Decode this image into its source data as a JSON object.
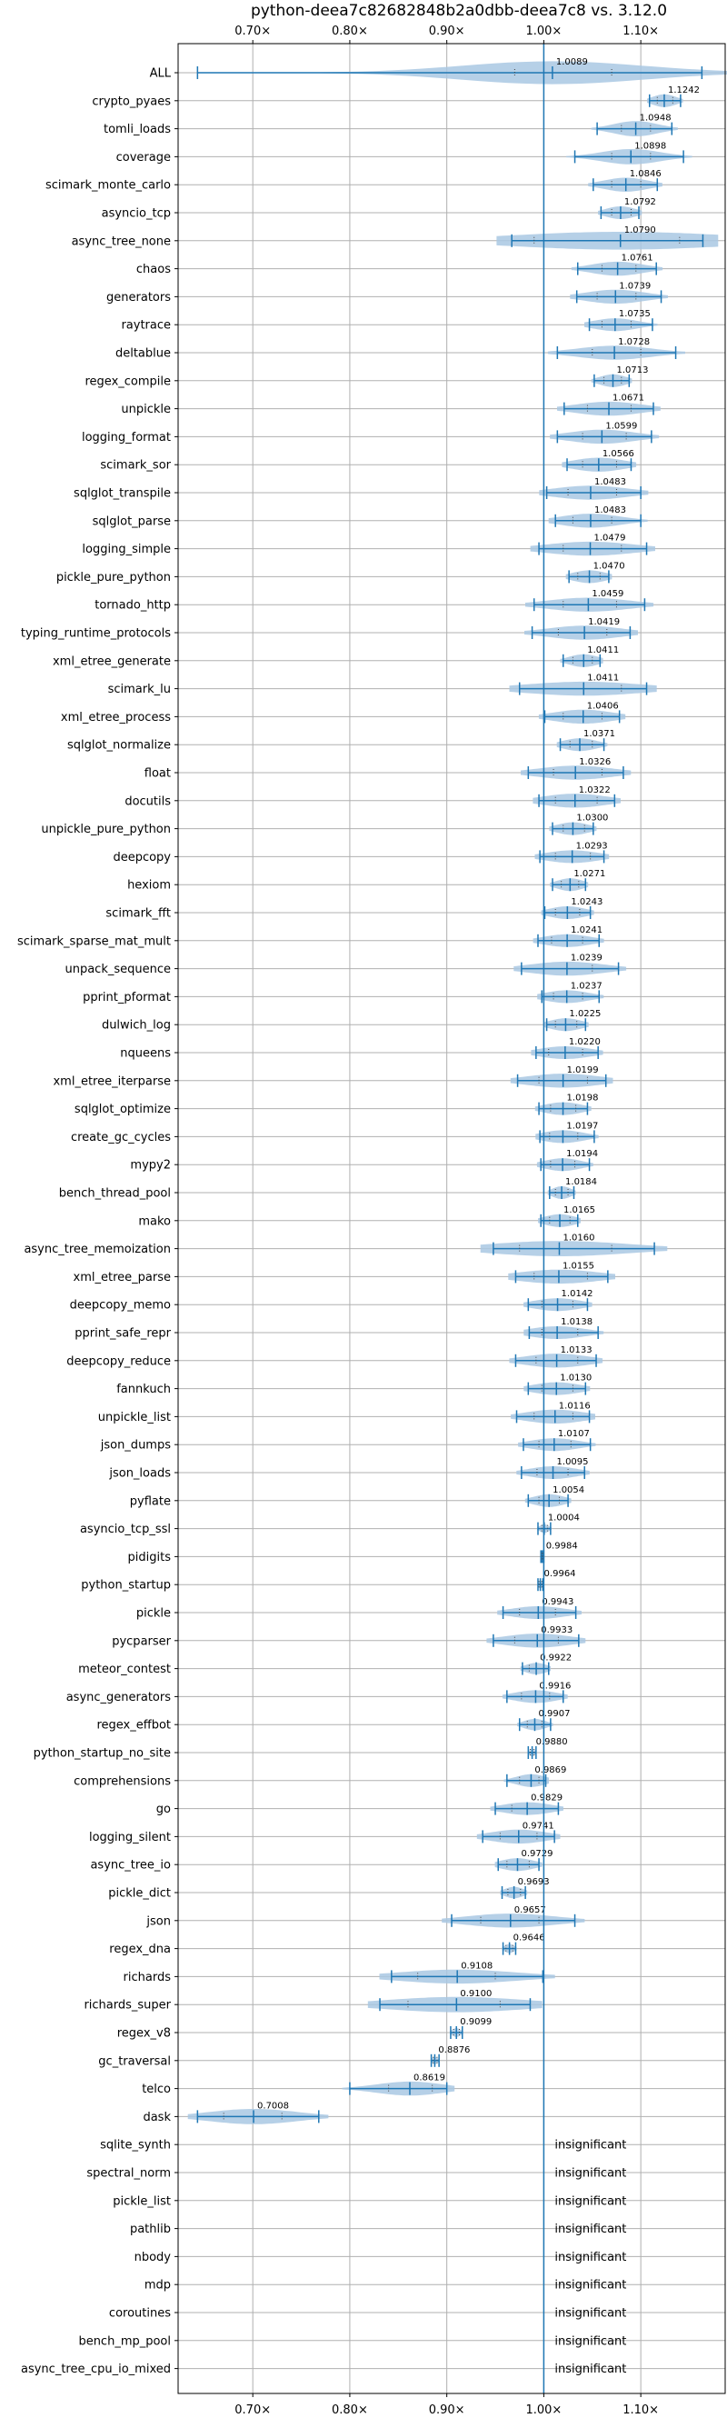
{
  "chart_data": {
    "type": "violin",
    "title": "python-deea7c82682848b2a0dbb-deea7c8 vs. 3.12.0",
    "orientation": "horizontal",
    "xlim": [
      0.623,
      1.187
    ],
    "xticks": [
      0.7,
      0.8,
      0.9,
      1.0,
      1.1
    ],
    "xtick_labels": [
      "0.70×",
      "0.80×",
      "0.90×",
      "1.00×",
      "1.10×"
    ],
    "reference_line": 1.0,
    "grid": true,
    "colors": {
      "violin": "#a9c8e3",
      "line": "#1f77b4",
      "grid": "#b0b0b0"
    },
    "insignificant_label": "insignificant",
    "benchmarks": [
      {
        "name": "ALL",
        "value": 1.0089,
        "min": 0.643,
        "max": 1.163,
        "p25": 0.97,
        "p75": 1.07,
        "width": 0.9,
        "insignificant": false
      },
      {
        "name": "crypto_pyaes",
        "value": 1.1242,
        "min": 1.109,
        "max": 1.141,
        "p25": 1.117,
        "p75": 1.133,
        "width": 0.5,
        "insignificant": false
      },
      {
        "name": "tomli_loads",
        "value": 1.0948,
        "min": 1.055,
        "max": 1.132,
        "p25": 1.08,
        "p75": 1.11,
        "width": 0.6,
        "insignificant": false
      },
      {
        "name": "coverage",
        "value": 1.0898,
        "min": 1.032,
        "max": 1.144,
        "p25": 1.07,
        "p75": 1.11,
        "width": 0.6,
        "insignificant": false
      },
      {
        "name": "scimark_monte_carlo",
        "value": 1.0846,
        "min": 1.051,
        "max": 1.117,
        "p25": 1.07,
        "p75": 1.1,
        "width": 0.55,
        "insignificant": false
      },
      {
        "name": "asyncio_tcp",
        "value": 1.0792,
        "min": 1.059,
        "max": 1.098,
        "p25": 1.07,
        "p75": 1.09,
        "width": 0.5,
        "insignificant": false
      },
      {
        "name": "async_tree_none",
        "value": 1.079,
        "min": 0.967,
        "max": 1.164,
        "p25": 0.99,
        "p75": 1.14,
        "width": 0.7,
        "insignificant": false
      },
      {
        "name": "chaos",
        "value": 1.0761,
        "min": 1.035,
        "max": 1.116,
        "p25": 1.06,
        "p75": 1.095,
        "width": 0.55,
        "insignificant": false
      },
      {
        "name": "generators",
        "value": 1.0739,
        "min": 1.034,
        "max": 1.121,
        "p25": 1.055,
        "p75": 1.095,
        "width": 0.55,
        "insignificant": false
      },
      {
        "name": "raytrace",
        "value": 1.0735,
        "min": 1.047,
        "max": 1.112,
        "p25": 1.06,
        "p75": 1.09,
        "width": 0.5,
        "insignificant": false
      },
      {
        "name": "deltablue",
        "value": 1.0728,
        "min": 1.014,
        "max": 1.136,
        "p25": 1.05,
        "p75": 1.1,
        "width": 0.55,
        "insignificant": false
      },
      {
        "name": "regex_compile",
        "value": 1.0713,
        "min": 1.052,
        "max": 1.088,
        "p25": 1.062,
        "p75": 1.08,
        "width": 0.5,
        "insignificant": false
      },
      {
        "name": "unpickle",
        "value": 1.0671,
        "min": 1.021,
        "max": 1.113,
        "p25": 1.045,
        "p75": 1.09,
        "width": 0.55,
        "insignificant": false
      },
      {
        "name": "logging_format",
        "value": 1.0599,
        "min": 1.014,
        "max": 1.111,
        "p25": 1.04,
        "p75": 1.085,
        "width": 0.55,
        "insignificant": false
      },
      {
        "name": "scimark_sor",
        "value": 1.0566,
        "min": 1.024,
        "max": 1.09,
        "p25": 1.04,
        "p75": 1.075,
        "width": 0.55,
        "insignificant": false
      },
      {
        "name": "sqlglot_transpile",
        "value": 1.0483,
        "min": 1.003,
        "max": 1.1,
        "p25": 1.025,
        "p75": 1.075,
        "width": 0.55,
        "insignificant": false
      },
      {
        "name": "sqlglot_parse",
        "value": 1.0483,
        "min": 1.012,
        "max": 1.1,
        "p25": 1.03,
        "p75": 1.07,
        "width": 0.55,
        "insignificant": false
      },
      {
        "name": "logging_simple",
        "value": 1.0479,
        "min": 0.995,
        "max": 1.106,
        "p25": 1.02,
        "p75": 1.08,
        "width": 0.55,
        "insignificant": false
      },
      {
        "name": "pickle_pure_python",
        "value": 1.047,
        "min": 1.026,
        "max": 1.067,
        "p25": 1.035,
        "p75": 1.058,
        "width": 0.5,
        "insignificant": false
      },
      {
        "name": "tornado_http",
        "value": 1.0459,
        "min": 0.99,
        "max": 1.104,
        "p25": 1.02,
        "p75": 1.075,
        "width": 0.55,
        "insignificant": false
      },
      {
        "name": "typing_runtime_protocols",
        "value": 1.0419,
        "min": 0.988,
        "max": 1.089,
        "p25": 1.015,
        "p75": 1.065,
        "width": 0.55,
        "insignificant": false
      },
      {
        "name": "xml_etree_generate",
        "value": 1.0411,
        "min": 1.02,
        "max": 1.058,
        "p25": 1.03,
        "p75": 1.05,
        "width": 0.5,
        "insignificant": false
      },
      {
        "name": "scimark_lu",
        "value": 1.0411,
        "min": 0.975,
        "max": 1.106,
        "p25": 1.0,
        "p75": 1.08,
        "width": 0.55,
        "insignificant": false
      },
      {
        "name": "xml_etree_process",
        "value": 1.0406,
        "min": 1.001,
        "max": 1.078,
        "p25": 1.02,
        "p75": 1.06,
        "width": 0.55,
        "insignificant": false
      },
      {
        "name": "sqlglot_normalize",
        "value": 1.0371,
        "min": 1.017,
        "max": 1.062,
        "p25": 1.027,
        "p75": 1.05,
        "width": 0.5,
        "insignificant": false
      },
      {
        "name": "float",
        "value": 1.0326,
        "min": 0.984,
        "max": 1.082,
        "p25": 1.01,
        "p75": 1.06,
        "width": 0.55,
        "insignificant": false
      },
      {
        "name": "docutils",
        "value": 1.0322,
        "min": 0.995,
        "max": 1.073,
        "p25": 1.012,
        "p75": 1.055,
        "width": 0.55,
        "insignificant": false
      },
      {
        "name": "unpickle_pure_python",
        "value": 1.03,
        "min": 1.009,
        "max": 1.051,
        "p25": 1.02,
        "p75": 1.042,
        "width": 0.5,
        "insignificant": false
      },
      {
        "name": "deepcopy",
        "value": 1.0293,
        "min": 0.996,
        "max": 1.062,
        "p25": 1.012,
        "p75": 1.048,
        "width": 0.5,
        "insignificant": false
      },
      {
        "name": "hexiom",
        "value": 1.0271,
        "min": 1.009,
        "max": 1.043,
        "p25": 1.018,
        "p75": 1.036,
        "width": 0.5,
        "insignificant": false
      },
      {
        "name": "scimark_fft",
        "value": 1.0243,
        "min": 1.001,
        "max": 1.048,
        "p25": 1.012,
        "p75": 1.037,
        "width": 0.5,
        "insignificant": false
      },
      {
        "name": "scimark_sparse_mat_mult",
        "value": 1.0241,
        "min": 0.994,
        "max": 1.057,
        "p25": 1.008,
        "p75": 1.04,
        "width": 0.5,
        "insignificant": false
      },
      {
        "name": "unpack_sequence",
        "value": 1.0239,
        "min": 0.977,
        "max": 1.077,
        "p25": 1.0,
        "p75": 1.05,
        "width": 0.55,
        "insignificant": false
      },
      {
        "name": "pprint_pformat",
        "value": 1.0237,
        "min": 0.998,
        "max": 1.057,
        "p25": 1.01,
        "p75": 1.04,
        "width": 0.5,
        "insignificant": false
      },
      {
        "name": "dulwich_log",
        "value": 1.0225,
        "min": 1.003,
        "max": 1.043,
        "p25": 1.012,
        "p75": 1.034,
        "width": 0.5,
        "insignificant": false
      },
      {
        "name": "nqueens",
        "value": 1.022,
        "min": 0.992,
        "max": 1.056,
        "p25": 1.005,
        "p75": 1.04,
        "width": 0.5,
        "insignificant": false
      },
      {
        "name": "xml_etree_iterparse",
        "value": 1.0199,
        "min": 0.973,
        "max": 1.064,
        "p25": 0.995,
        "p75": 1.045,
        "width": 0.55,
        "insignificant": false
      },
      {
        "name": "sqlglot_optimize",
        "value": 1.0198,
        "min": 0.995,
        "max": 1.045,
        "p25": 1.007,
        "p75": 1.033,
        "width": 0.5,
        "insignificant": false
      },
      {
        "name": "create_gc_cycles",
        "value": 1.0197,
        "min": 0.996,
        "max": 1.052,
        "p25": 1.006,
        "p75": 1.035,
        "width": 0.5,
        "insignificant": false
      },
      {
        "name": "mypy2",
        "value": 1.0194,
        "min": 0.997,
        "max": 1.047,
        "p25": 1.007,
        "p75": 1.032,
        "width": 0.5,
        "insignificant": false
      },
      {
        "name": "bench_thread_pool",
        "value": 1.0184,
        "min": 1.006,
        "max": 1.031,
        "p25": 1.012,
        "p75": 1.025,
        "width": 0.5,
        "insignificant": false
      },
      {
        "name": "mako",
        "value": 1.0165,
        "min": 0.997,
        "max": 1.035,
        "p25": 1.006,
        "p75": 1.027,
        "width": 0.5,
        "insignificant": false
      },
      {
        "name": "async_tree_memoization",
        "value": 1.016,
        "min": 0.948,
        "max": 1.114,
        "p25": 0.975,
        "p75": 1.07,
        "width": 0.6,
        "insignificant": false
      },
      {
        "name": "xml_etree_parse",
        "value": 1.0155,
        "min": 0.971,
        "max": 1.066,
        "p25": 0.99,
        "p75": 1.045,
        "width": 0.55,
        "insignificant": false
      },
      {
        "name": "deepcopy_memo",
        "value": 1.0142,
        "min": 0.984,
        "max": 1.045,
        "p25": 0.998,
        "p75": 1.03,
        "width": 0.5,
        "insignificant": false
      },
      {
        "name": "pprint_safe_repr",
        "value": 1.0138,
        "min": 0.985,
        "max": 1.056,
        "p25": 0.998,
        "p75": 1.035,
        "width": 0.5,
        "insignificant": false
      },
      {
        "name": "deepcopy_reduce",
        "value": 1.0133,
        "min": 0.971,
        "max": 1.054,
        "p25": 0.992,
        "p75": 1.035,
        "width": 0.55,
        "insignificant": false
      },
      {
        "name": "fannkuch",
        "value": 1.013,
        "min": 0.984,
        "max": 1.043,
        "p25": 0.998,
        "p75": 1.03,
        "width": 0.5,
        "insignificant": false
      },
      {
        "name": "unpickle_list",
        "value": 1.0116,
        "min": 0.972,
        "max": 1.047,
        "p25": 0.99,
        "p75": 1.03,
        "width": 0.55,
        "insignificant": false
      },
      {
        "name": "json_dumps",
        "value": 1.0107,
        "min": 0.979,
        "max": 1.048,
        "p25": 0.995,
        "p75": 1.028,
        "width": 0.5,
        "insignificant": false
      },
      {
        "name": "json_loads",
        "value": 1.0095,
        "min": 0.977,
        "max": 1.042,
        "p25": 0.993,
        "p75": 1.025,
        "width": 0.5,
        "insignificant": false
      },
      {
        "name": "pyflate",
        "value": 1.0054,
        "min": 0.984,
        "max": 1.025,
        "p25": 0.995,
        "p75": 1.016,
        "width": 0.5,
        "insignificant": false
      },
      {
        "name": "asyncio_tcp_ssl",
        "value": 1.0004,
        "min": 0.994,
        "max": 1.007,
        "p25": 0.998,
        "p75": 1.004,
        "width": 0.35,
        "insignificant": false
      },
      {
        "name": "pidigits",
        "value": 0.9984,
        "min": 0.997,
        "max": 1.0,
        "p25": 0.998,
        "p75": 0.999,
        "width": 0.25,
        "insignificant": false
      },
      {
        "name": "python_startup",
        "value": 0.9964,
        "min": 0.994,
        "max": 0.999,
        "p25": 0.995,
        "p75": 0.998,
        "width": 0.3,
        "insignificant": false
      },
      {
        "name": "pickle",
        "value": 0.9943,
        "min": 0.958,
        "max": 1.033,
        "p25": 0.975,
        "p75": 1.012,
        "width": 0.5,
        "insignificant": false
      },
      {
        "name": "pycparser",
        "value": 0.9933,
        "min": 0.948,
        "max": 1.036,
        "p25": 0.97,
        "p75": 1.015,
        "width": 0.55,
        "insignificant": false
      },
      {
        "name": "meteor_contest",
        "value": 0.9922,
        "min": 0.978,
        "max": 1.005,
        "p25": 0.985,
        "p75": 1.0,
        "width": 0.45,
        "insignificant": false
      },
      {
        "name": "async_generators",
        "value": 0.9916,
        "min": 0.962,
        "max": 1.02,
        "p25": 0.977,
        "p75": 1.006,
        "width": 0.5,
        "insignificant": false
      },
      {
        "name": "regex_effbot",
        "value": 0.9907,
        "min": 0.975,
        "max": 1.007,
        "p25": 0.983,
        "p75": 0.998,
        "width": 0.45,
        "insignificant": false
      },
      {
        "name": "python_startup_no_site",
        "value": 0.988,
        "min": 0.984,
        "max": 0.992,
        "p25": 0.986,
        "p75": 0.99,
        "width": 0.3,
        "insignificant": false
      },
      {
        "name": "comprehensions",
        "value": 0.9869,
        "min": 0.962,
        "max": 1.002,
        "p25": 0.975,
        "p75": 0.995,
        "width": 0.5,
        "insignificant": false
      },
      {
        "name": "go",
        "value": 0.9829,
        "min": 0.95,
        "max": 1.015,
        "p25": 0.967,
        "p75": 1.0,
        "width": 0.5,
        "insignificant": false
      },
      {
        "name": "logging_silent",
        "value": 0.9741,
        "min": 0.937,
        "max": 1.011,
        "p25": 0.955,
        "p75": 0.993,
        "width": 0.55,
        "insignificant": false
      },
      {
        "name": "async_tree_io",
        "value": 0.9729,
        "min": 0.953,
        "max": 0.995,
        "p25": 0.962,
        "p75": 0.985,
        "width": 0.5,
        "insignificant": false
      },
      {
        "name": "pickle_dict",
        "value": 0.9693,
        "min": 0.957,
        "max": 0.981,
        "p25": 0.963,
        "p75": 0.976,
        "width": 0.45,
        "insignificant": false
      },
      {
        "name": "json",
        "value": 0.9657,
        "min": 0.905,
        "max": 1.032,
        "p25": 0.935,
        "p75": 0.995,
        "width": 0.55,
        "insignificant": false
      },
      {
        "name": "regex_dna",
        "value": 0.9646,
        "min": 0.958,
        "max": 0.971,
        "p25": 0.961,
        "p75": 0.968,
        "width": 0.35,
        "insignificant": false
      },
      {
        "name": "richards",
        "value": 0.9108,
        "min": 0.843,
        "max": 0.999,
        "p25": 0.87,
        "p75": 0.95,
        "width": 0.55,
        "insignificant": false
      },
      {
        "name": "richards_super",
        "value": 0.91,
        "min": 0.831,
        "max": 0.986,
        "p25": 0.86,
        "p75": 0.955,
        "width": 0.6,
        "insignificant": false
      },
      {
        "name": "regex_v8",
        "value": 0.9099,
        "min": 0.904,
        "max": 0.916,
        "p25": 0.907,
        "p75": 0.913,
        "width": 0.35,
        "insignificant": false
      },
      {
        "name": "gc_traversal",
        "value": 0.8876,
        "min": 0.884,
        "max": 0.892,
        "p25": 0.886,
        "p75": 0.89,
        "width": 0.3,
        "insignificant": false
      },
      {
        "name": "telco",
        "value": 0.8619,
        "min": 0.8,
        "max": 0.9,
        "p25": 0.84,
        "p75": 0.885,
        "width": 0.55,
        "insignificant": false
      },
      {
        "name": "dask",
        "value": 0.7008,
        "min": 0.643,
        "max": 0.768,
        "p25": 0.67,
        "p75": 0.73,
        "width": 0.6,
        "insignificant": false
      },
      {
        "name": "sqlite_synth",
        "insignificant": true
      },
      {
        "name": "spectral_norm",
        "insignificant": true
      },
      {
        "name": "pickle_list",
        "insignificant": true
      },
      {
        "name": "pathlib",
        "insignificant": true
      },
      {
        "name": "nbody",
        "insignificant": true
      },
      {
        "name": "mdp",
        "insignificant": true
      },
      {
        "name": "coroutines",
        "insignificant": true
      },
      {
        "name": "bench_mp_pool",
        "insignificant": true
      },
      {
        "name": "async_tree_cpu_io_mixed",
        "insignificant": true
      }
    ]
  }
}
